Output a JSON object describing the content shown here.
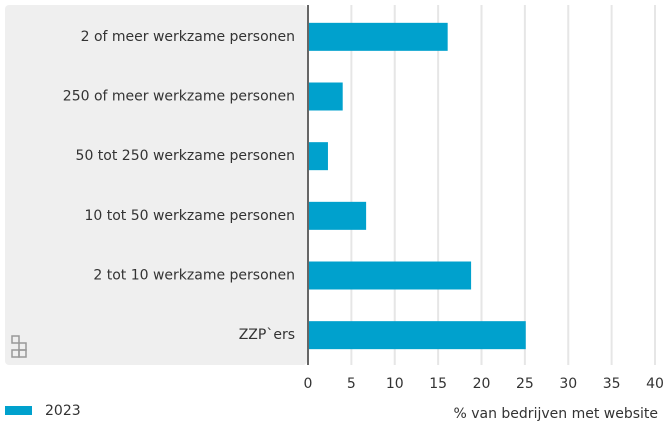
{
  "chart_data": {
    "type": "bar",
    "orientation": "horizontal",
    "categories": [
      "2 of meer werkzame personen",
      "250 of meer werkzame personen",
      "50 tot 250 werkzame personen",
      "10 tot 50 werkzame personen",
      "2 tot 10 werkzame personen",
      "ZZP`ers"
    ],
    "series": [
      {
        "name": "2023",
        "color": "#00a1cd",
        "values": [
          16.1,
          4.0,
          2.3,
          6.7,
          18.8,
          25.1
        ]
      }
    ],
    "xlim": [
      0,
      40
    ],
    "xticks": [
      0,
      5,
      10,
      15,
      20,
      25,
      30,
      35,
      40
    ],
    "xlabel": "% van bedrijven met website",
    "grid": true,
    "legend": "bottom-left"
  }
}
